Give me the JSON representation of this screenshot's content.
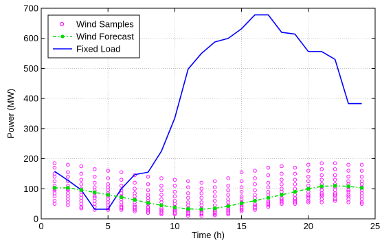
{
  "chart_data": {
    "type": "line",
    "title": "",
    "xlabel": "Time (h)",
    "ylabel": "Power (MW)",
    "xlim": [
      0,
      25
    ],
    "ylim": [
      0,
      700
    ],
    "xticks": [
      0,
      5,
      10,
      15,
      20,
      25
    ],
    "yticks": [
      0,
      100,
      200,
      300,
      400,
      500,
      600,
      700
    ],
    "xtick_labels": [
      "0",
      "5",
      "10",
      "15",
      "20",
      "25"
    ],
    "ytick_labels": [
      "0",
      "100",
      "200",
      "300",
      "400",
      "500",
      "600",
      "700"
    ],
    "grid": true,
    "legend_position": "top-left",
    "series": [
      {
        "name": "Wind Samples",
        "kind": "scatter",
        "color": "#ff00ff",
        "marker": "circle-open",
        "x": [
          1,
          1,
          1,
          1,
          1,
          1,
          1,
          1,
          1,
          1,
          1,
          1,
          2,
          2,
          2,
          2,
          2,
          2,
          2,
          2,
          2,
          2,
          2,
          2,
          3,
          3,
          3,
          3,
          3,
          3,
          3,
          3,
          3,
          3,
          3,
          3,
          4,
          4,
          4,
          4,
          4,
          4,
          4,
          4,
          4,
          4,
          4,
          4,
          5,
          5,
          5,
          5,
          5,
          5,
          5,
          5,
          5,
          5,
          5,
          5,
          6,
          6,
          6,
          6,
          6,
          6,
          6,
          6,
          6,
          6,
          6,
          6,
          7,
          7,
          7,
          7,
          7,
          7,
          7,
          7,
          7,
          7,
          7,
          7,
          8,
          8,
          8,
          8,
          8,
          8,
          8,
          8,
          8,
          8,
          8,
          8,
          9,
          9,
          9,
          9,
          9,
          9,
          9,
          9,
          9,
          9,
          9,
          9,
          10,
          10,
          10,
          10,
          10,
          10,
          10,
          10,
          10,
          10,
          10,
          10,
          11,
          11,
          11,
          11,
          11,
          11,
          11,
          11,
          11,
          11,
          11,
          11,
          12,
          12,
          12,
          12,
          12,
          12,
          12,
          12,
          12,
          12,
          12,
          12,
          13,
          13,
          13,
          13,
          13,
          13,
          13,
          13,
          13,
          13,
          13,
          13,
          14,
          14,
          14,
          14,
          14,
          14,
          14,
          14,
          14,
          14,
          14,
          14,
          15,
          15,
          15,
          15,
          15,
          15,
          15,
          15,
          15,
          15,
          15,
          15,
          16,
          16,
          16,
          16,
          16,
          16,
          16,
          16,
          16,
          16,
          16,
          16,
          17,
          17,
          17,
          17,
          17,
          17,
          17,
          17,
          17,
          17,
          17,
          17,
          18,
          18,
          18,
          18,
          18,
          18,
          18,
          18,
          18,
          18,
          18,
          18,
          19,
          19,
          19,
          19,
          19,
          19,
          19,
          19,
          19,
          19,
          19,
          19,
          20,
          20,
          20,
          20,
          20,
          20,
          20,
          20,
          20,
          20,
          20,
          20,
          21,
          21,
          21,
          21,
          21,
          21,
          21,
          21,
          21,
          21,
          21,
          21,
          22,
          22,
          22,
          22,
          22,
          22,
          22,
          22,
          22,
          22,
          22,
          22,
          23,
          23,
          23,
          23,
          23,
          23,
          23,
          23,
          23,
          23,
          23,
          23,
          24,
          24,
          24,
          24,
          24,
          24,
          24,
          24,
          24,
          24,
          24,
          24
        ],
        "y": [
          185,
          170,
          150,
          140,
          125,
          110,
          100,
          95,
          85,
          75,
          60,
          50,
          180,
          155,
          140,
          125,
          110,
          100,
          95,
          85,
          75,
          65,
          55,
          45,
          175,
          150,
          130,
          115,
          100,
          90,
          80,
          70,
          60,
          50,
          40,
          35,
          165,
          140,
          120,
          105,
          95,
          85,
          75,
          70,
          60,
          50,
          40,
          30,
          160,
          135,
          115,
          105,
          95,
          85,
          75,
          65,
          55,
          45,
          35,
          30,
          155,
          130,
          110,
          95,
          85,
          75,
          65,
          55,
          45,
          40,
          35,
          30,
          145,
          120,
          100,
          85,
          75,
          65,
          55,
          45,
          40,
          35,
          30,
          25,
          140,
          115,
          95,
          80,
          70,
          60,
          50,
          40,
          35,
          30,
          25,
          20,
          135,
          110,
          95,
          80,
          65,
          55,
          45,
          35,
          30,
          25,
          20,
          15,
          130,
          110,
          90,
          75,
          60,
          50,
          40,
          35,
          30,
          25,
          20,
          15,
          125,
          105,
          85,
          70,
          55,
          45,
          35,
          30,
          25,
          20,
          15,
          10,
          120,
          100,
          85,
          70,
          55,
          45,
          35,
          30,
          25,
          20,
          15,
          10,
          125,
          105,
          90,
          75,
          60,
          45,
          35,
          30,
          25,
          20,
          15,
          12,
          135,
          110,
          95,
          80,
          65,
          55,
          45,
          35,
          30,
          25,
          20,
          15,
          155,
          125,
          105,
          90,
          75,
          65,
          55,
          45,
          40,
          35,
          30,
          25,
          160,
          135,
          115,
          95,
          80,
          70,
          60,
          50,
          45,
          40,
          35,
          30,
          170,
          145,
          120,
          105,
          90,
          80,
          70,
          60,
          55,
          50,
          45,
          40,
          175,
          150,
          130,
          115,
          100,
          90,
          80,
          70,
          65,
          60,
          55,
          50,
          170,
          150,
          130,
          115,
          100,
          90,
          80,
          70,
          65,
          60,
          55,
          50,
          180,
          160,
          140,
          125,
          110,
          100,
          90,
          80,
          75,
          70,
          60,
          55,
          185,
          165,
          145,
          130,
          115,
          105,
          95,
          85,
          80,
          75,
          65,
          55,
          185,
          165,
          145,
          130,
          115,
          105,
          95,
          85,
          80,
          75,
          65,
          60,
          180,
          160,
          140,
          125,
          115,
          105,
          95,
          90,
          80,
          75,
          65,
          55,
          180,
          160,
          140,
          125,
          115,
          105,
          95,
          85,
          75,
          65,
          55,
          50
        ]
      },
      {
        "name": "Wind Forecast",
        "kind": "line",
        "color": "#00dd00",
        "marker": "dot",
        "dash": "dash-dot",
        "x": [
          1,
          2,
          3,
          4,
          5,
          6,
          7,
          8,
          9,
          10,
          11,
          12,
          13,
          14,
          15,
          16,
          17,
          18,
          19,
          20,
          21,
          22,
          23,
          24
        ],
        "y": [
          103,
          103,
          96,
          88,
          80,
          72,
          63,
          53,
          45,
          38,
          33,
          32,
          35,
          42,
          52,
          60,
          70,
          80,
          90,
          100,
          108,
          110,
          108,
          103
        ]
      },
      {
        "name": "Fixed Load",
        "kind": "line",
        "color": "#0000ff",
        "marker": "none",
        "x": [
          1,
          2,
          3,
          4,
          5,
          6,
          7,
          8,
          9,
          10,
          11,
          12,
          13,
          14,
          15,
          16,
          17,
          18,
          19,
          20,
          21,
          22,
          23,
          24
        ],
        "y": [
          158,
          128,
          96,
          32,
          32,
          100,
          147,
          155,
          225,
          335,
          498,
          550,
          588,
          600,
          632,
          678,
          678,
          620,
          614,
          556,
          556,
          530,
          383,
          383
        ]
      }
    ]
  }
}
